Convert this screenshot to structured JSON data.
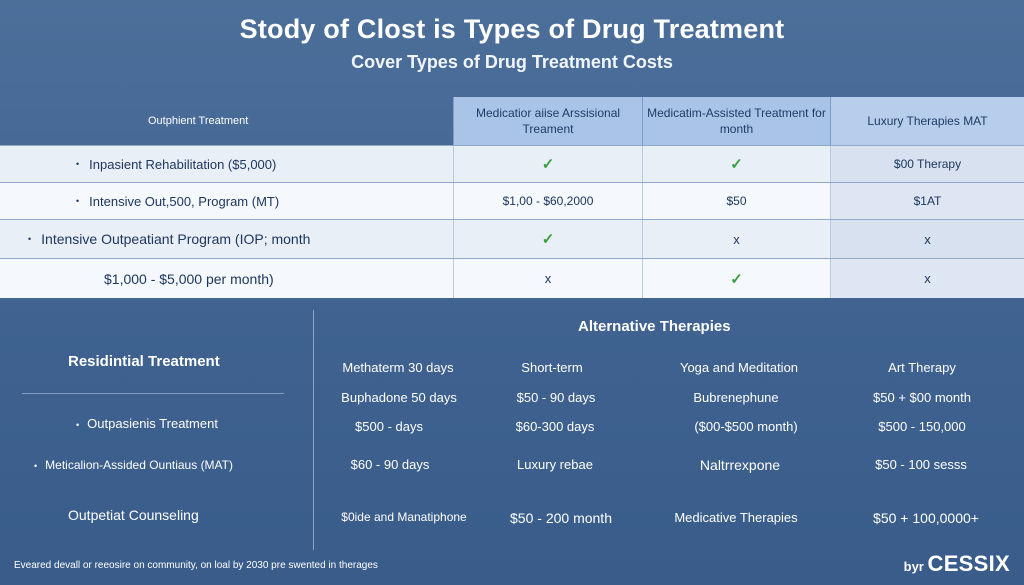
{
  "title": "Stody of Clost is Types of  Drug Treatment",
  "subtitle": "Cover Types of Drug Treatment Costs",
  "table": {
    "header": {
      "first": "Outphient Treatment",
      "cols": [
        "Medicatior aiise Arssisional Treament",
        "Medicatim-Assisted Treatment for month",
        "Luxury Therapies MAT"
      ]
    },
    "rows": [
      {
        "label": "Inpasient Rehabilitation ($5,000)",
        "cells": [
          "✓",
          "✓",
          "$00 Therapy"
        ]
      },
      {
        "label": "Intensive Out,500, Program (MT)",
        "cells": [
          "$1,00 - $60,2000",
          "$50",
          "$1AT"
        ]
      },
      {
        "label": "Intensive Outpeatiant Program (IOP; month",
        "cells": [
          "✓",
          "x",
          "x"
        ]
      },
      {
        "label": "$1,000 - $5,000 per month)",
        "cells": [
          "x",
          "✓",
          "x"
        ]
      }
    ]
  },
  "left": {
    "heading": "Residintial Treatment",
    "items": [
      "Outpasienis Treatment",
      "Meticalion-Assided Ountiaus (MAT)",
      "Outpetiat Counseling"
    ]
  },
  "alternative": {
    "title": "Alternative Therapies",
    "grid": [
      [
        "Methaterm 30 days",
        "Short-term",
        "Yoga and Meditation",
        "Art Therapy"
      ],
      [
        "Buphadone 50 days",
        "$50 - 90 days",
        "Bubrenephune",
        "$50 + $00 month"
      ],
      [
        "$500 - days",
        "$60-300 days",
        "($00-$500 month)",
        "$500 - 150,000"
      ],
      [
        "$60 - 90 days",
        "Luxury rebae",
        "Naltrrexpone",
        "$50 - 100 sesss"
      ],
      [
        "$0ide and Manatiphone",
        "$50 - 200 month",
        "Medicative Therapies",
        "$50 + 100,0000+"
      ]
    ]
  },
  "footer": "Eveared devall or reeosire on community, on loal by 2030 pre swented in therages",
  "brand": {
    "prefix": "byr",
    "name": "CESSIX"
  }
}
